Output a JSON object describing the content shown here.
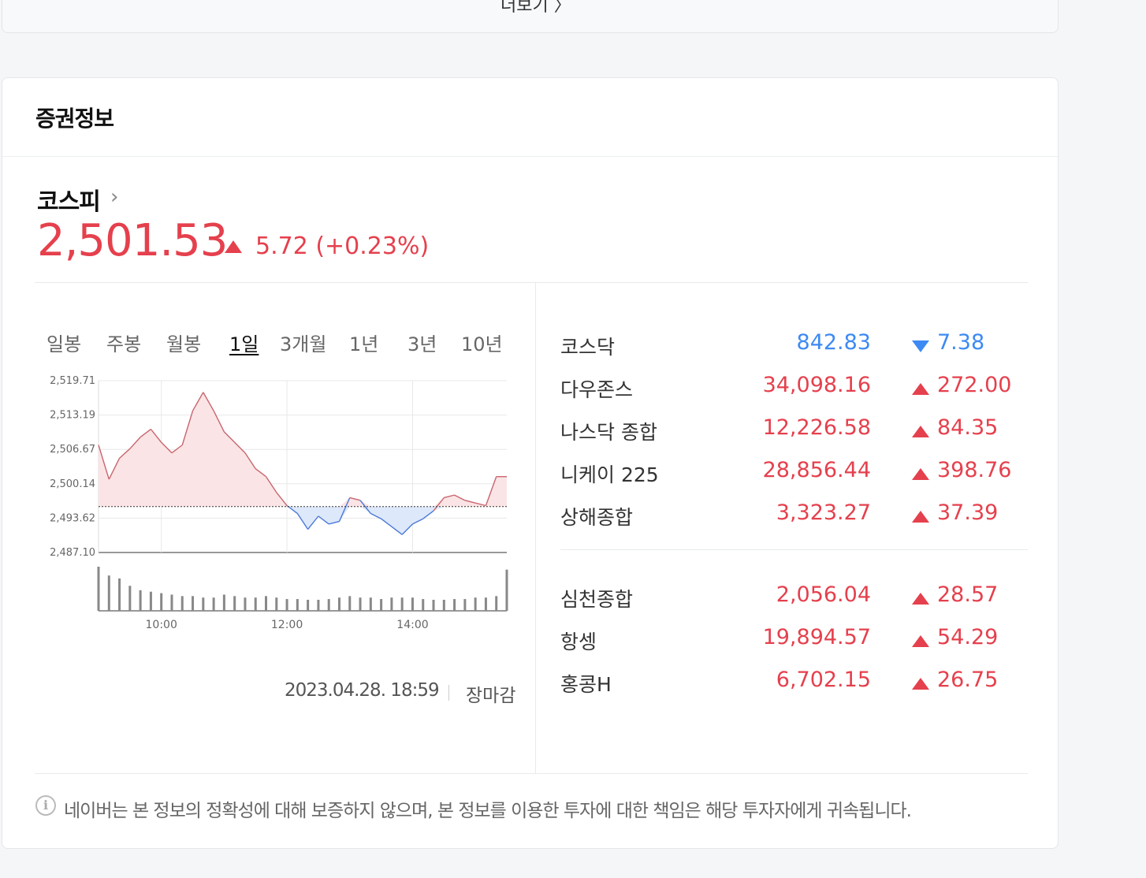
{
  "top": {
    "more_label": "더보기 〉"
  },
  "card": {
    "title": "증권정보"
  },
  "main": {
    "name": "코스피",
    "name_arrow": "›",
    "value": "2,501.53",
    "direction": "up",
    "change": "5.72 (+0.23%)"
  },
  "tabs": [
    {
      "label": "일봉",
      "active": false
    },
    {
      "label": "주봉",
      "active": false
    },
    {
      "label": "월봉",
      "active": false
    },
    {
      "label": "1일",
      "active": true
    },
    {
      "label": "3개월",
      "active": false
    },
    {
      "label": "1년",
      "active": false
    },
    {
      "label": "3년",
      "active": false
    },
    {
      "label": "10년",
      "active": false
    }
  ],
  "chart_data": {
    "type": "area",
    "title": "",
    "xlabel": "",
    "ylabel": "",
    "y_ticks": [
      "2,519.71",
      "2,513.19",
      "2,506.67",
      "2,500.14",
      "2,493.62",
      "2,487.10"
    ],
    "ylim": [
      2487.1,
      2519.71
    ],
    "x_ticks": [
      "10:00",
      "12:00",
      "14:00"
    ],
    "baseline": 2495.81,
    "x": [
      "09:00",
      "09:10",
      "09:20",
      "09:30",
      "09:40",
      "09:50",
      "10:00",
      "10:10",
      "10:20",
      "10:30",
      "10:40",
      "10:50",
      "11:00",
      "11:10",
      "11:20",
      "11:30",
      "11:40",
      "11:50",
      "12:00",
      "12:10",
      "12:20",
      "12:30",
      "12:40",
      "12:50",
      "13:00",
      "13:10",
      "13:20",
      "13:30",
      "13:40",
      "13:50",
      "14:00",
      "14:10",
      "14:20",
      "14:30",
      "14:40",
      "14:50",
      "15:00",
      "15:10",
      "15:20",
      "15:30"
    ],
    "y": [
      2507.5,
      2501.0,
      2505.0,
      2506.8,
      2509.0,
      2510.5,
      2508.0,
      2506.0,
      2507.5,
      2514.0,
      2517.5,
      2514.0,
      2510.0,
      2508.0,
      2506.0,
      2503.0,
      2501.5,
      2498.5,
      2496.0,
      2494.5,
      2491.5,
      2494.0,
      2492.5,
      2493.0,
      2497.5,
      2497.0,
      2494.5,
      2493.5,
      2492.0,
      2490.5,
      2492.5,
      2493.5,
      2495.0,
      2497.5,
      2498.0,
      2497.0,
      2496.5,
      2496.0,
      2501.5,
      2501.5
    ],
    "volume": [
      60,
      48,
      44,
      34,
      28,
      26,
      24,
      22,
      20,
      20,
      18,
      18,
      22,
      20,
      18,
      18,
      20,
      18,
      16,
      16,
      15,
      15,
      16,
      18,
      20,
      18,
      18,
      16,
      18,
      18,
      18,
      16,
      15,
      15,
      16,
      16,
      18,
      18,
      20,
      56
    ],
    "colors": {
      "up_line": "#c8656e",
      "up_fill": "#fbe4e5",
      "down_line": "#4a79d8",
      "down_fill": "#dde8fb",
      "volume": "#888888"
    }
  },
  "timestamp": "2023.04.28. 18:59",
  "market_status": "장마감",
  "indices": [
    {
      "name": "코스닥",
      "value": "842.83",
      "change": "7.38",
      "direction": "down"
    },
    {
      "name": "다우존스",
      "value": "34,098.16",
      "change": "272.00",
      "direction": "up"
    },
    {
      "name": "나스닥 종합",
      "value": "12,226.58",
      "change": "84.35",
      "direction": "up"
    },
    {
      "name": "니케이 225",
      "value": "28,856.44",
      "change": "398.76",
      "direction": "up"
    },
    {
      "name": "상해종합",
      "value": "3,323.27",
      "change": "37.39",
      "direction": "up"
    },
    {
      "name": "심천종합",
      "value": "2,056.04",
      "change": "28.57",
      "direction": "up"
    },
    {
      "name": "항셍",
      "value": "19,894.57",
      "change": "54.29",
      "direction": "up"
    },
    {
      "name": "홍콩H",
      "value": "6,702.15",
      "change": "26.75",
      "direction": "up"
    }
  ],
  "disclaimer": {
    "icon_glyph": "i",
    "text": "네이버는 본 정보의 정확성에 대해 보증하지 않으며, 본 정보를 이용한 투자에 대한 책임은 해당 투자자에게 귀속됩니다."
  }
}
